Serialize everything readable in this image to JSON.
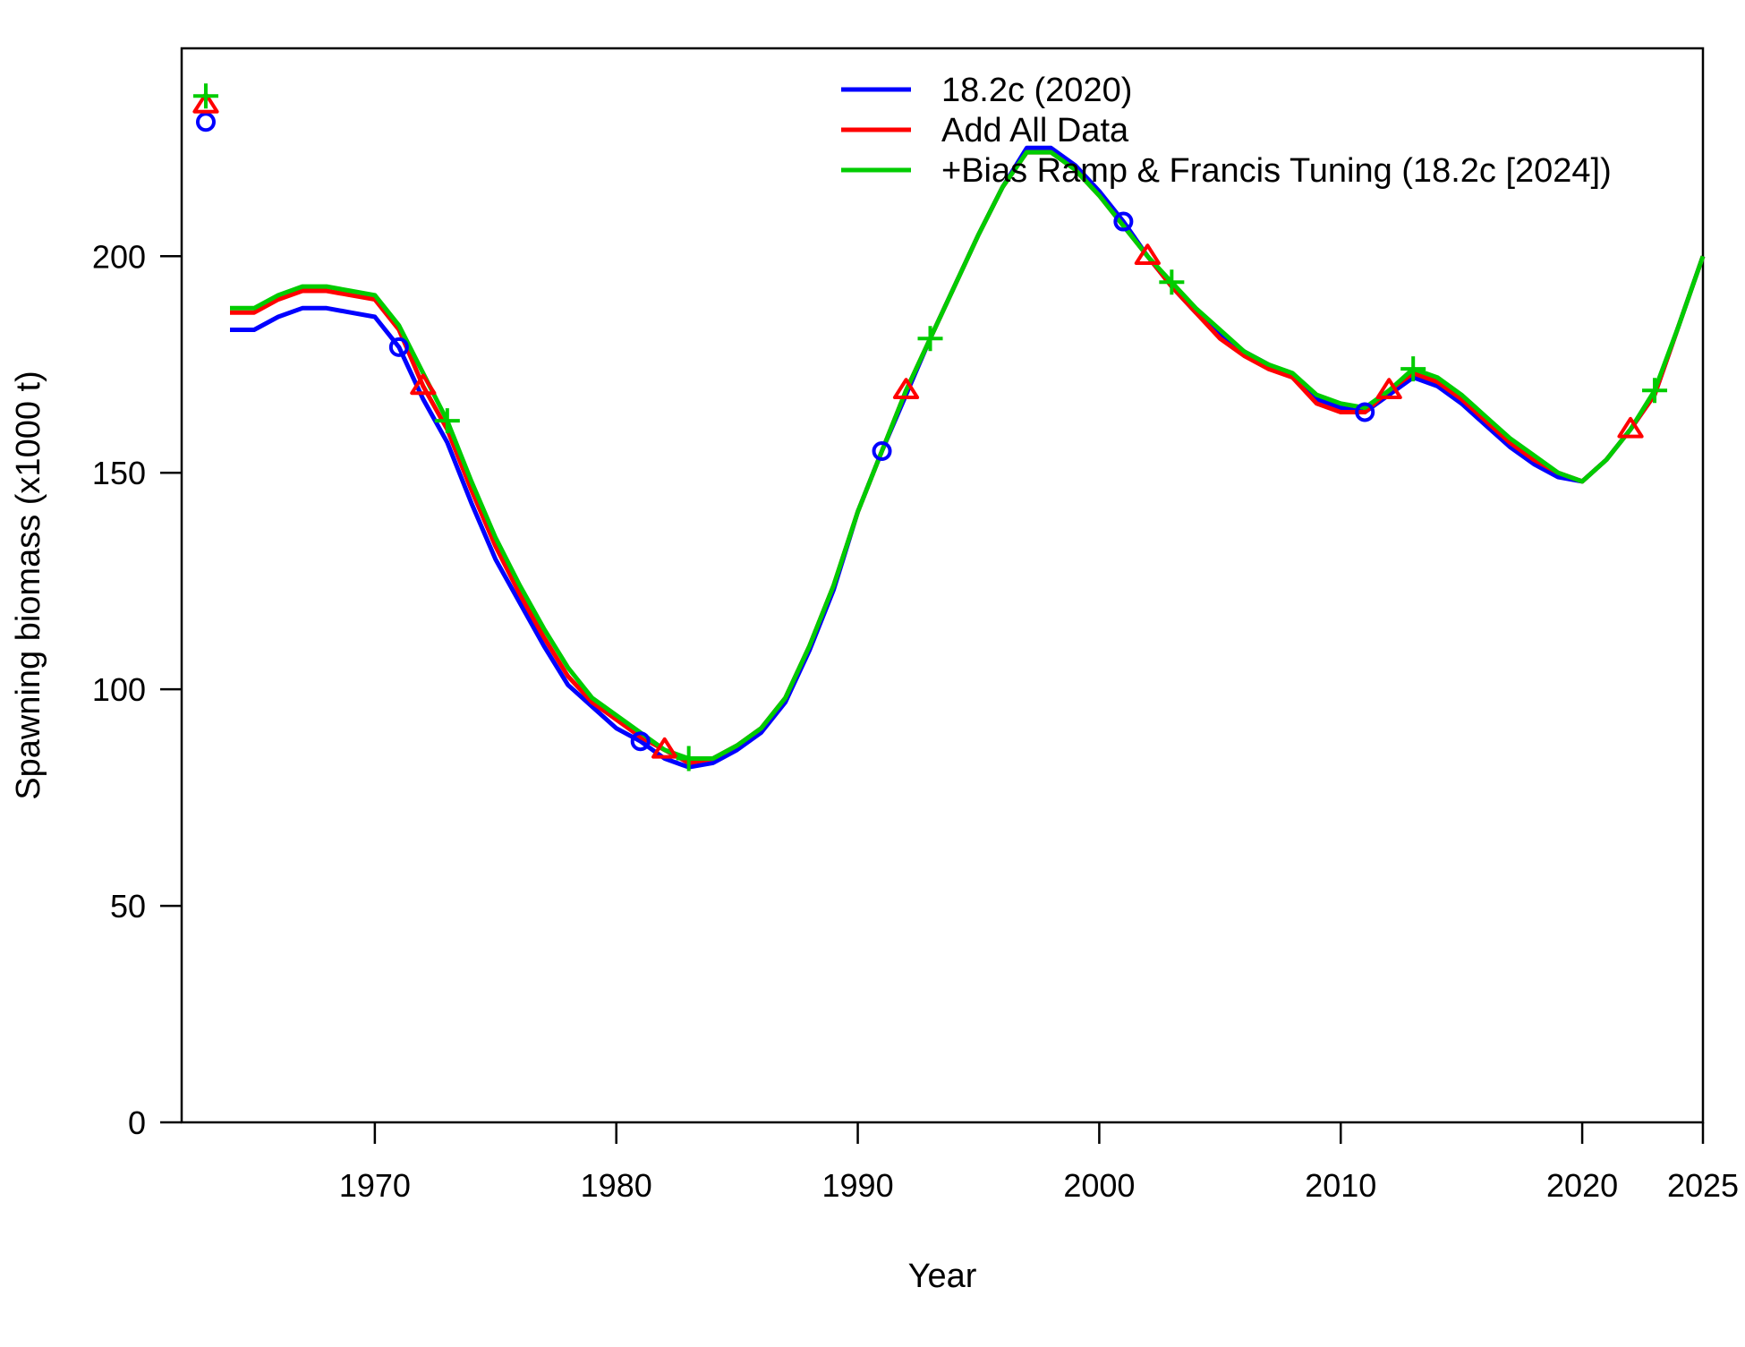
{
  "chart_data": {
    "type": "line",
    "xlabel": "Year",
    "ylabel": "Spawning biomass (x1000 t)",
    "xlim": [
      1962,
      2025
    ],
    "ylim": [
      0,
      248
    ],
    "x_ticks": [
      1970,
      1980,
      1990,
      2000,
      2010,
      2020,
      2025
    ],
    "y_ticks": [
      0,
      50,
      100,
      150,
      200
    ],
    "grid": false,
    "legend_position": "top-right",
    "virgin_year": 1963,
    "x": [
      1964,
      1965,
      1966,
      1967,
      1968,
      1969,
      1970,
      1971,
      1972,
      1973,
      1974,
      1975,
      1976,
      1977,
      1978,
      1979,
      1980,
      1981,
      1982,
      1983,
      1984,
      1985,
      1986,
      1987,
      1988,
      1989,
      1990,
      1991,
      1992,
      1993,
      1994,
      1995,
      1996,
      1997,
      1998,
      1999,
      2000,
      2001,
      2002,
      2003,
      2004,
      2005,
      2006,
      2007,
      2008,
      2009,
      2010,
      2011,
      2012,
      2013,
      2014,
      2015,
      2016,
      2017,
      2018,
      2019,
      2020,
      2021,
      2022,
      2023,
      2024,
      2025
    ],
    "series": [
      {
        "name": "18.2c (2020)",
        "color": "#0000ff",
        "marker": "circle",
        "marker_years": [
          1963,
          1971,
          1981,
          1991,
          2001,
          2011
        ],
        "virgin": 231,
        "values": [
          183,
          183,
          186,
          188,
          188,
          187,
          186,
          179,
          167,
          157,
          143,
          130,
          120,
          110,
          101,
          96,
          91,
          88,
          84,
          82,
          83,
          86,
          90,
          97,
          109,
          123,
          141,
          155,
          168,
          181,
          193,
          205,
          216,
          225,
          225,
          221,
          215,
          208,
          200,
          193,
          187,
          182,
          178,
          175,
          172,
          167,
          165,
          164,
          168,
          172,
          170,
          166,
          161,
          156,
          152,
          149,
          148,
          153,
          160,
          168,
          184,
          200
        ]
      },
      {
        "name": "Add All Data",
        "color": "#ff0000",
        "marker": "triangle",
        "marker_years": [
          1963,
          1972,
          1982,
          1992,
          2002,
          2012,
          2022
        ],
        "virgin": 235,
        "values": [
          187,
          187,
          190,
          192,
          192,
          191,
          190,
          183,
          170,
          160,
          146,
          133,
          122,
          112,
          103,
          97,
          93,
          89,
          86,
          83,
          84,
          87,
          91,
          98,
          110,
          124,
          141,
          155,
          169,
          181,
          193,
          205,
          216,
          224,
          224,
          220,
          214,
          207,
          200,
          193,
          187,
          181,
          177,
          174,
          172,
          166,
          164,
          164,
          169,
          173,
          171,
          167,
          162,
          157,
          153,
          150,
          148,
          153,
          160,
          168,
          184,
          200
        ]
      },
      {
        "name": "+Bias Ramp & Francis Tuning (18.2c [2024])",
        "color": "#00cc00",
        "marker": "plus",
        "marker_years": [
          1963,
          1973,
          1983,
          1993,
          2003,
          2013,
          2023
        ],
        "virgin": 237,
        "values": [
          188,
          188,
          191,
          193,
          193,
          192,
          191,
          184,
          173,
          162,
          148,
          135,
          124,
          114,
          105,
          98,
          94,
          90,
          86,
          84,
          84,
          87,
          91,
          98,
          110,
          124,
          141,
          155,
          169,
          181,
          193,
          205,
          216,
          224,
          224,
          220,
          214,
          207,
          200,
          194,
          188,
          183,
          178,
          175,
          173,
          168,
          166,
          165,
          169,
          174,
          172,
          168,
          163,
          158,
          154,
          150,
          148,
          153,
          160,
          169,
          184,
          200
        ]
      }
    ]
  }
}
